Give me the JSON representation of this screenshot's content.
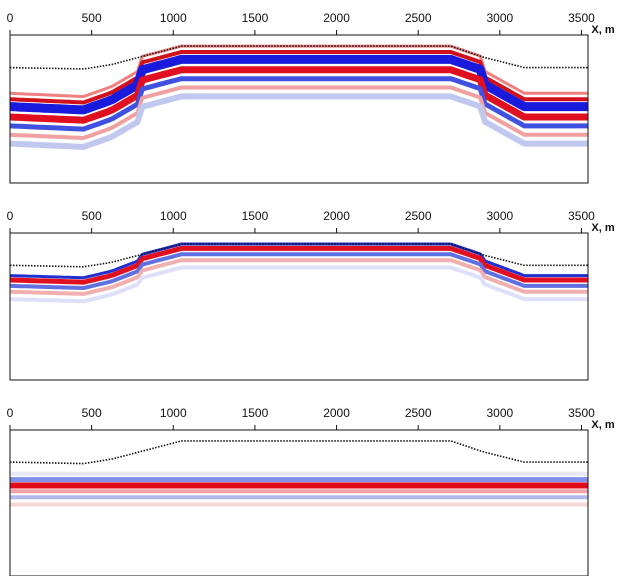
{
  "chart_data": [
    {
      "type": "image",
      "xlabel": "X, m",
      "xlim": [
        0,
        3540
      ],
      "xticks": [
        0,
        500,
        1000,
        1500,
        2000,
        2500,
        3000,
        3500
      ]
    },
    {
      "type": "image",
      "xlabel": "X, m",
      "xlim": [
        0,
        3540
      ],
      "xticks": [
        0,
        500,
        1000,
        1500,
        2000,
        2500,
        3000,
        3500
      ]
    },
    {
      "type": "image",
      "xlabel": "X, m",
      "xlim": [
        0,
        3540
      ],
      "xticks": [
        0,
        500,
        1000,
        1500,
        2000,
        2500,
        3000,
        3500
      ]
    }
  ]
}
